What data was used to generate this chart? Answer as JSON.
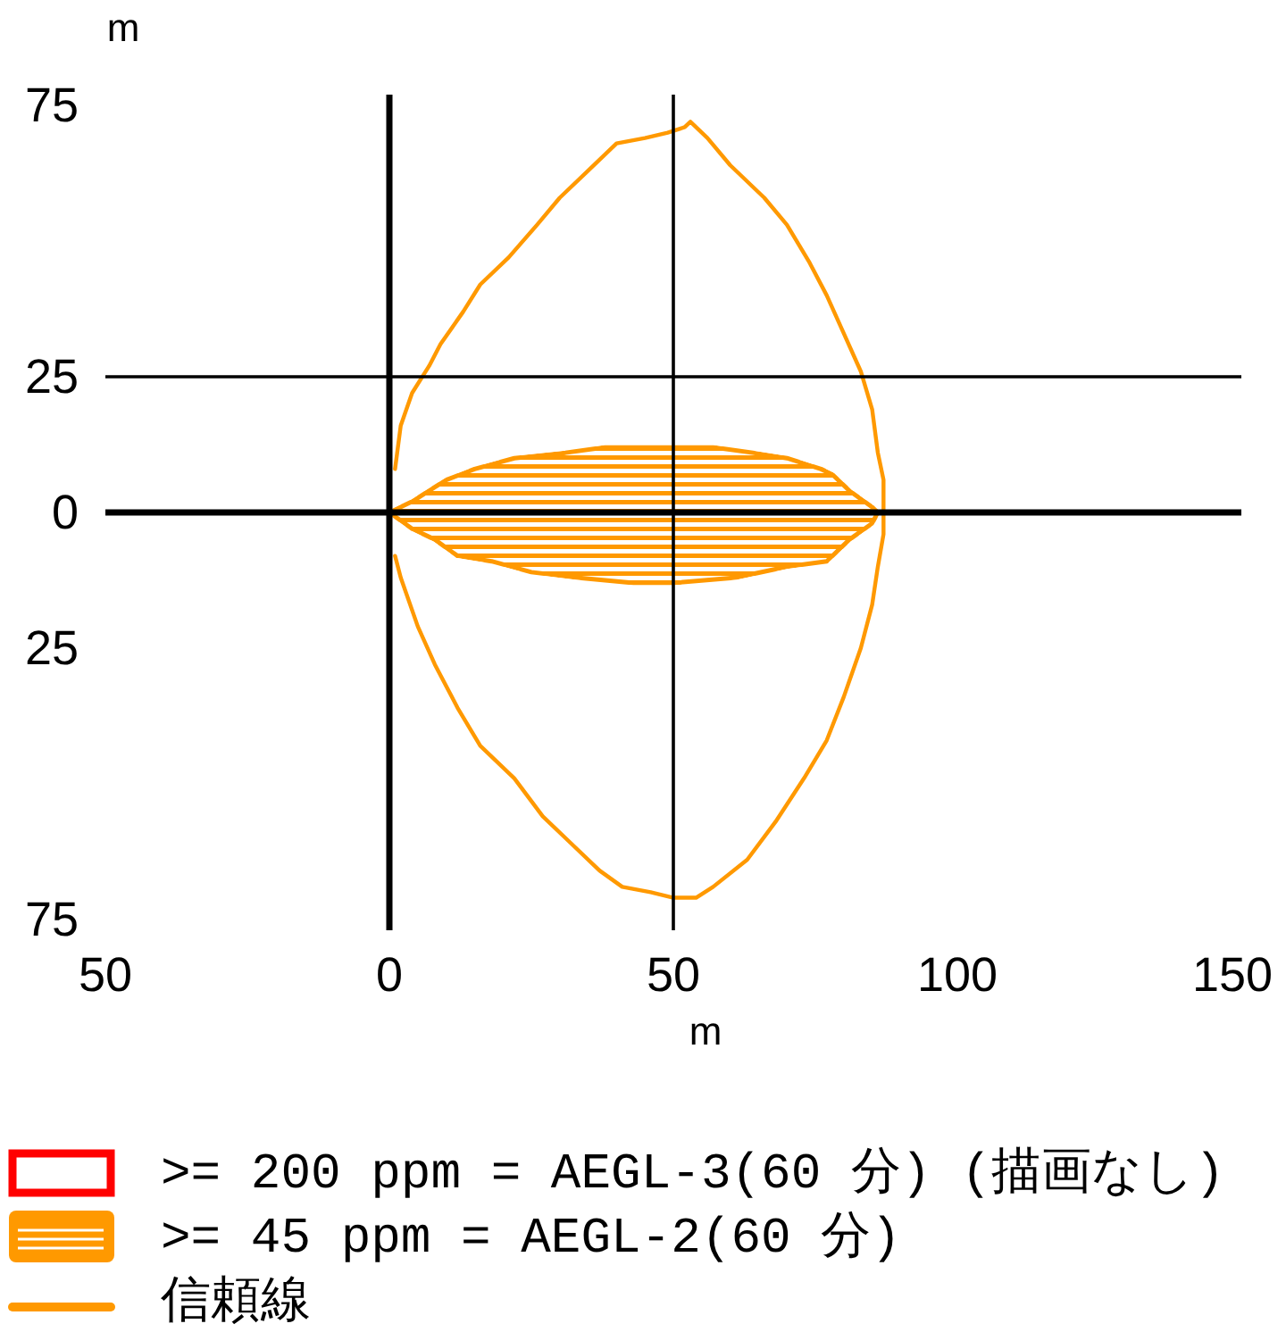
{
  "chart_data": {
    "type": "area",
    "xlabel": "m",
    "ylabel": "m",
    "xlim": [
      -50,
      150
    ],
    "ylim": [
      -77,
      77
    ],
    "xticks": [
      {
        "value": -50,
        "label": "50"
      },
      0,
      100,
      150
    ],
    "yticks": [
      75,
      0,
      {
        "value": -25,
        "label": "25"
      },
      {
        "value": -75,
        "label": "75"
      }
    ],
    "ref_lines": [
      {
        "axis": "x",
        "value": 50,
        "label": "50",
        "color": "#000000"
      },
      {
        "axis": "y",
        "value": 25,
        "label": "25",
        "color": "#000000"
      }
    ],
    "legend": "bottom left",
    "series": [
      {
        "name": ">= 200 ppm = AEGL-3(60 分) (描画なし)",
        "type": "area",
        "color": "#ff0000"
      },
      {
        "name": ">= 45 ppm = AEGL-2(60 分)",
        "type": "area",
        "color": "#ff9900",
        "x": [
          0,
          4,
          7,
          10,
          15,
          22,
          31,
          38,
          50,
          57,
          64,
          70,
          76,
          78,
          81,
          85,
          86,
          85,
          81,
          77,
          70,
          61,
          50,
          43,
          33,
          25,
          18,
          12,
          8,
          4,
          0
        ],
        "values": [
          0,
          2,
          4,
          6,
          8,
          10,
          11,
          12,
          12,
          12,
          11,
          10,
          8,
          7,
          4,
          1,
          0,
          -2,
          -5,
          -9,
          -10,
          -12,
          -13,
          -13,
          -12,
          -11,
          -9,
          -8,
          -5,
          -3,
          0
        ]
      },
      {
        "name": "信頼線",
        "type": "line",
        "color": "#ff9900",
        "x": [
          1,
          2,
          4,
          7,
          9,
          13,
          16,
          21,
          26,
          30,
          35,
          40,
          45,
          49,
          52,
          53,
          56,
          60,
          66,
          70,
          74,
          77,
          80,
          83,
          85,
          86,
          87,
          87,
          87,
          86,
          85,
          83,
          80,
          77,
          73,
          68,
          63,
          57,
          54,
          50,
          46,
          41,
          37,
          32,
          27,
          22,
          16,
          12,
          8,
          5,
          2,
          1
        ],
        "values": [
          8,
          16,
          22,
          27,
          31,
          37,
          42,
          47,
          53,
          58,
          63,
          68,
          69,
          70,
          71,
          72,
          69,
          64,
          58,
          53,
          46,
          40,
          33,
          26,
          19,
          11,
          6,
          0,
          -4,
          -10,
          -17,
          -25,
          -34,
          -42,
          -49,
          -57,
          -64,
          -69,
          -71,
          -71,
          -70,
          -69,
          -66,
          -61,
          -56,
          -49,
          -43,
          -36,
          -28,
          -21,
          -12,
          -8
        ]
      }
    ]
  }
}
